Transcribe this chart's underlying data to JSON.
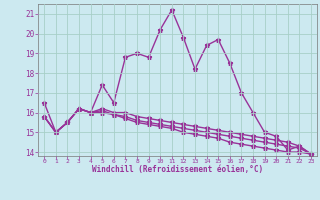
{
  "xlabel": "Windchill (Refroidissement éolien,°C)",
  "background_color": "#cce9f0",
  "grid_color": "#a8cfc8",
  "line_color": "#993399",
  "x_hours": [
    0,
    1,
    2,
    3,
    4,
    5,
    6,
    7,
    8,
    9,
    10,
    11,
    12,
    13,
    14,
    15,
    16,
    17,
    18,
    19,
    20,
    21,
    22,
    23
  ],
  "temp_line1": [
    16.5,
    15.0,
    15.5,
    16.2,
    16.0,
    17.4,
    16.5,
    18.8,
    19.0,
    18.8,
    20.2,
    21.2,
    19.8,
    18.2,
    19.4,
    19.7,
    18.5,
    17.0,
    16.0,
    15.0,
    14.8,
    14.1,
    14.3,
    13.9
  ],
  "temp_line2": [
    15.8,
    15.0,
    15.5,
    16.2,
    16.0,
    16.2,
    16.0,
    16.0,
    15.8,
    15.7,
    15.6,
    15.5,
    15.4,
    15.3,
    15.2,
    15.1,
    15.0,
    14.9,
    14.8,
    14.7,
    14.6,
    14.5,
    14.3,
    13.9
  ],
  "temp_line3": [
    15.8,
    15.0,
    15.5,
    16.2,
    16.0,
    16.1,
    15.9,
    15.8,
    15.6,
    15.5,
    15.4,
    15.3,
    15.2,
    15.1,
    15.0,
    14.9,
    14.8,
    14.7,
    14.6,
    14.5,
    14.4,
    14.3,
    14.2,
    13.9
  ],
  "temp_line4": [
    15.8,
    15.0,
    15.5,
    16.2,
    16.0,
    16.0,
    15.9,
    15.7,
    15.5,
    15.4,
    15.3,
    15.2,
    15.0,
    14.9,
    14.8,
    14.7,
    14.5,
    14.4,
    14.3,
    14.2,
    14.1,
    14.0,
    14.0,
    13.9
  ],
  "ylim": [
    13.8,
    21.5
  ],
  "yticks": [
    14,
    15,
    16,
    17,
    18,
    19,
    20,
    21
  ],
  "xlim": [
    -0.5,
    23.5
  ],
  "xtick_labels": [
    "0",
    "1",
    "2",
    "3",
    "4",
    "5",
    "6",
    "7",
    "8",
    "9",
    "10",
    "11",
    "12",
    "13",
    "14",
    "15",
    "16",
    "17",
    "18",
    "19",
    "20",
    "21",
    "22",
    "23"
  ]
}
